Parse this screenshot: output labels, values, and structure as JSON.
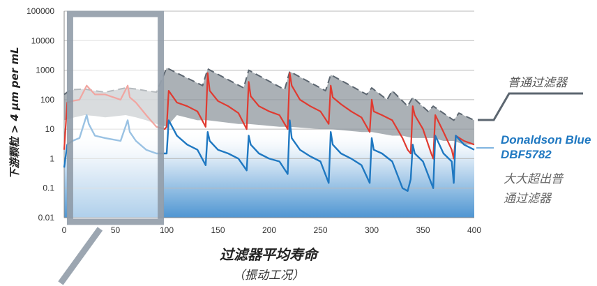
{
  "chart_data": {
    "type": "line",
    "ylabel": "下游颗粒 > 4 µm per mL",
    "xlabel": "过滤器平均寿命",
    "xlabel_sub": "（振动工况）",
    "y_scale": "log",
    "ylim": [
      0.01,
      100000
    ],
    "xlim": [
      0,
      400
    ],
    "y_ticks": [
      "100000",
      "10000",
      "1000",
      "100",
      "10",
      "1",
      "0.1",
      "0.01"
    ],
    "x_ticks": [
      "0",
      "50",
      "100",
      "150",
      "200",
      "250",
      "300",
      "350",
      "400"
    ],
    "grid": true,
    "legend": [
      {
        "name": "普通过滤器",
        "color": "#5c6670"
      },
      {
        "name": "Donaldson Blue",
        "name2": "DBF5782",
        "color": "#1f78c1"
      }
    ],
    "annotation_lines": [
      "大大超出普",
      "通过滤器"
    ],
    "series": [
      {
        "name": "普通过滤器 (upper dashed)",
        "color": "#5c6670",
        "x": [
          0,
          5,
          10,
          20,
          30,
          40,
          60,
          70,
          80,
          90,
          100,
          110,
          135,
          140,
          175,
          180,
          215,
          220,
          255,
          260,
          295,
          300,
          315,
          320,
          335,
          340,
          355,
          360,
          380,
          385,
          400
        ],
        "y": [
          150,
          200,
          220,
          230,
          200,
          180,
          250,
          230,
          200,
          180,
          1200,
          800,
          300,
          1100,
          250,
          1000,
          220,
          900,
          200,
          700,
          150,
          250,
          100,
          200,
          60,
          120,
          40,
          60,
          20,
          35,
          20
        ]
      },
      {
        "name": "普通过滤器 (lower bound)",
        "color": "#5c6670",
        "x": [
          0,
          10,
          20,
          30,
          40,
          60,
          70,
          80,
          90,
          100,
          110,
          130,
          140,
          170,
          180,
          210,
          220,
          250,
          260,
          290,
          300,
          320,
          330,
          340,
          360,
          370,
          380,
          390,
          400
        ],
        "y": [
          20,
          25,
          30,
          28,
          25,
          30,
          25,
          20,
          15,
          12,
          30,
          20,
          20,
          15,
          15,
          12,
          12,
          10,
          10,
          8,
          8,
          6,
          6,
          5,
          5,
          4,
          4,
          3,
          3
        ]
      },
      {
        "name": "Red",
        "color": "#e03a30",
        "x": [
          0,
          3,
          8,
          15,
          22,
          24,
          30,
          40,
          55,
          62,
          64,
          70,
          80,
          90,
          98,
          100,
          102,
          110,
          120,
          130,
          138,
          140,
          142,
          150,
          160,
          170,
          178,
          180,
          182,
          190,
          200,
          210,
          218,
          220,
          222,
          230,
          240,
          250,
          258,
          260,
          262,
          270,
          280,
          290,
          298,
          300,
          302,
          310,
          320,
          330,
          335,
          338,
          340,
          342,
          350,
          358,
          360,
          362,
          370,
          378,
          380,
          382,
          390,
          400
        ],
        "y": [
          2,
          80,
          90,
          100,
          300,
          250,
          150,
          150,
          100,
          300,
          120,
          80,
          30,
          12,
          10,
          12,
          200,
          80,
          60,
          40,
          12,
          800,
          200,
          90,
          60,
          35,
          10,
          400,
          130,
          60,
          40,
          30,
          10,
          800,
          300,
          100,
          60,
          40,
          15,
          300,
          120,
          70,
          40,
          25,
          8,
          100,
          40,
          30,
          20,
          5,
          2,
          1.5,
          60,
          30,
          10,
          1.5,
          1,
          30,
          8,
          2,
          1,
          6,
          4,
          3
        ]
      },
      {
        "name": "Donaldson Blue DBF5782",
        "color": "#1f78c1",
        "x": [
          0,
          3,
          8,
          15,
          22,
          24,
          30,
          40,
          55,
          62,
          64,
          70,
          80,
          90,
          98,
          100,
          102,
          110,
          120,
          130,
          138,
          140,
          142,
          150,
          160,
          170,
          178,
          180,
          182,
          190,
          200,
          210,
          218,
          220,
          222,
          230,
          240,
          250,
          258,
          260,
          262,
          270,
          280,
          290,
          298,
          300,
          302,
          310,
          320,
          330,
          335,
          338,
          340,
          342,
          350,
          358,
          360,
          362,
          370,
          378,
          380,
          382,
          390,
          400
        ],
        "y": [
          0.5,
          3,
          4,
          5,
          30,
          15,
          6,
          5,
          4,
          20,
          8,
          4,
          2,
          1.5,
          1.5,
          1.5,
          20,
          6,
          3,
          2,
          0.6,
          8,
          4,
          2,
          1.5,
          1,
          0.4,
          6,
          3,
          1.5,
          1,
          0.8,
          0.3,
          20,
          5,
          2,
          1.2,
          0.8,
          0.15,
          8,
          3,
          1.5,
          1,
          0.6,
          0.15,
          5,
          2,
          1.5,
          0.8,
          0.1,
          0.08,
          0.2,
          3,
          1.5,
          0.8,
          0.15,
          0.1,
          6,
          1.5,
          0.8,
          0.15,
          6,
          3,
          2
        ]
      }
    ]
  }
}
